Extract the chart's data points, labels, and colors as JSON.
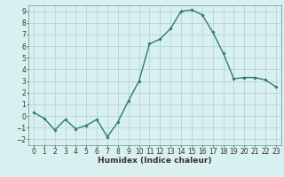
{
  "x": [
    0,
    1,
    2,
    3,
    4,
    5,
    6,
    7,
    8,
    9,
    10,
    11,
    12,
    13,
    14,
    15,
    16,
    17,
    18,
    19,
    20,
    21,
    22,
    23
  ],
  "y": [
    0.3,
    -0.2,
    -1.2,
    -0.3,
    -1.1,
    -0.8,
    -0.3,
    -1.8,
    -0.5,
    1.3,
    3.0,
    6.2,
    6.6,
    7.5,
    9.0,
    9.1,
    8.7,
    7.2,
    5.4,
    3.2,
    3.3,
    3.3,
    3.1,
    2.5
  ],
  "line_color": "#2e7d6e",
  "marker": "D",
  "markersize": 1.8,
  "linewidth": 1.0,
  "bg_color": "#d9f0f0",
  "grid_color": "#b0cece",
  "xlabel": "Humidex (Indice chaleur)",
  "xlim": [
    -0.5,
    23.5
  ],
  "ylim": [
    -2.5,
    9.5
  ],
  "xticks": [
    0,
    1,
    2,
    3,
    4,
    5,
    6,
    7,
    8,
    9,
    10,
    11,
    12,
    13,
    14,
    15,
    16,
    17,
    18,
    19,
    20,
    21,
    22,
    23
  ],
  "yticks": [
    -2,
    -1,
    0,
    1,
    2,
    3,
    4,
    5,
    6,
    7,
    8,
    9
  ],
  "tick_fontsize": 5.5,
  "xlabel_fontsize": 6.5,
  "spine_color": "#5a9a8a"
}
